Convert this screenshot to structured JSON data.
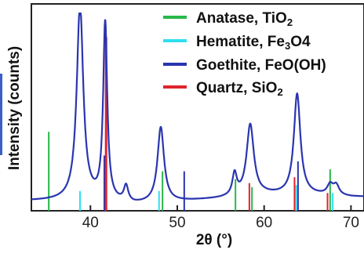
{
  "chart_data": {
    "type": "line",
    "xlabel": "2θ (°)",
    "ylabel": "Intensity (counts)",
    "xlim": [
      33.2,
      71.5
    ],
    "ylim": [
      0,
      1
    ],
    "x_ticks": [
      40,
      50,
      60,
      70
    ],
    "x_tick_labels": [
      "40",
      "50",
      "60",
      "70"
    ],
    "y_ticks_shown": false,
    "grid": false,
    "legend_position": "top-right",
    "legend": [
      {
        "name": "Anatase, TiO2",
        "label": "Anatase, TiO",
        "sub": "2",
        "tail": "",
        "color": "#27b84a"
      },
      {
        "name": "Hematite, Fe3O4",
        "label": "Hematite, Fe",
        "sub": "3",
        "tail": "O4",
        "color": "#2ee0f0"
      },
      {
        "name": "Goethite, FeO(OH)",
        "label": "Goethite, FeO(OH)",
        "sub": "",
        "tail": "",
        "color": "#2a35b0"
      },
      {
        "name": "Quartz, SiO2",
        "label": "Quartz, SiO",
        "sub": "2",
        "tail": "",
        "color": "#e0242e"
      }
    ],
    "pattern": {
      "color": "#2a35b0",
      "baseline": [
        [
          33.2,
          0.05
        ],
        [
          40,
          0.05
        ],
        [
          45,
          0.03
        ],
        [
          50,
          0.045
        ],
        [
          55,
          0.06
        ],
        [
          60,
          0.08
        ],
        [
          65,
          0.08
        ],
        [
          70,
          0.07
        ],
        [
          71.5,
          0.07
        ]
      ],
      "peaks": [
        {
          "x": 38.8,
          "h": 0.99,
          "w": 0.45
        },
        {
          "x": 41.7,
          "h": 0.9,
          "w": 0.28
        },
        {
          "x": 44.1,
          "h": 0.08,
          "w": 0.3
        },
        {
          "x": 48.1,
          "h": 0.38,
          "w": 0.45
        },
        {
          "x": 56.6,
          "h": 0.11,
          "w": 0.3
        },
        {
          "x": 58.4,
          "h": 0.36,
          "w": 0.5
        },
        {
          "x": 63.8,
          "h": 0.51,
          "w": 0.45
        },
        {
          "x": 67.6,
          "h": 0.05,
          "w": 0.4
        },
        {
          "x": 68.3,
          "h": 0.05,
          "w": 0.4
        }
      ]
    },
    "reference_lines": [
      {
        "phase": "Anatase, TiO2",
        "color": "#27b84a",
        "x": [
          35.2,
          48.3,
          56.7,
          58.6,
          67.6
        ],
        "h": [
          0.4,
          0.2,
          0.16,
          0.12,
          0.21
        ]
      },
      {
        "phase": "Hematite, Fe3O4",
        "color": "#2ee0f0",
        "x": [
          38.8,
          47.9,
          63.7,
          67.9
        ],
        "h": [
          0.1,
          0.1,
          0.13,
          0.09
        ]
      },
      {
        "phase": "Goethite, FeO(OH)",
        "color": "#2a35b0",
        "x": [
          41.6,
          50.8,
          63.9
        ],
        "h": [
          0.28,
          0.2,
          0.25
        ]
      },
      {
        "phase": "Quartz, SiO2",
        "color": "#e0242e",
        "x": [
          41.8,
          58.3,
          63.5,
          67.3
        ],
        "h": [
          0.88,
          0.14,
          0.17,
          0.09
        ]
      }
    ]
  }
}
